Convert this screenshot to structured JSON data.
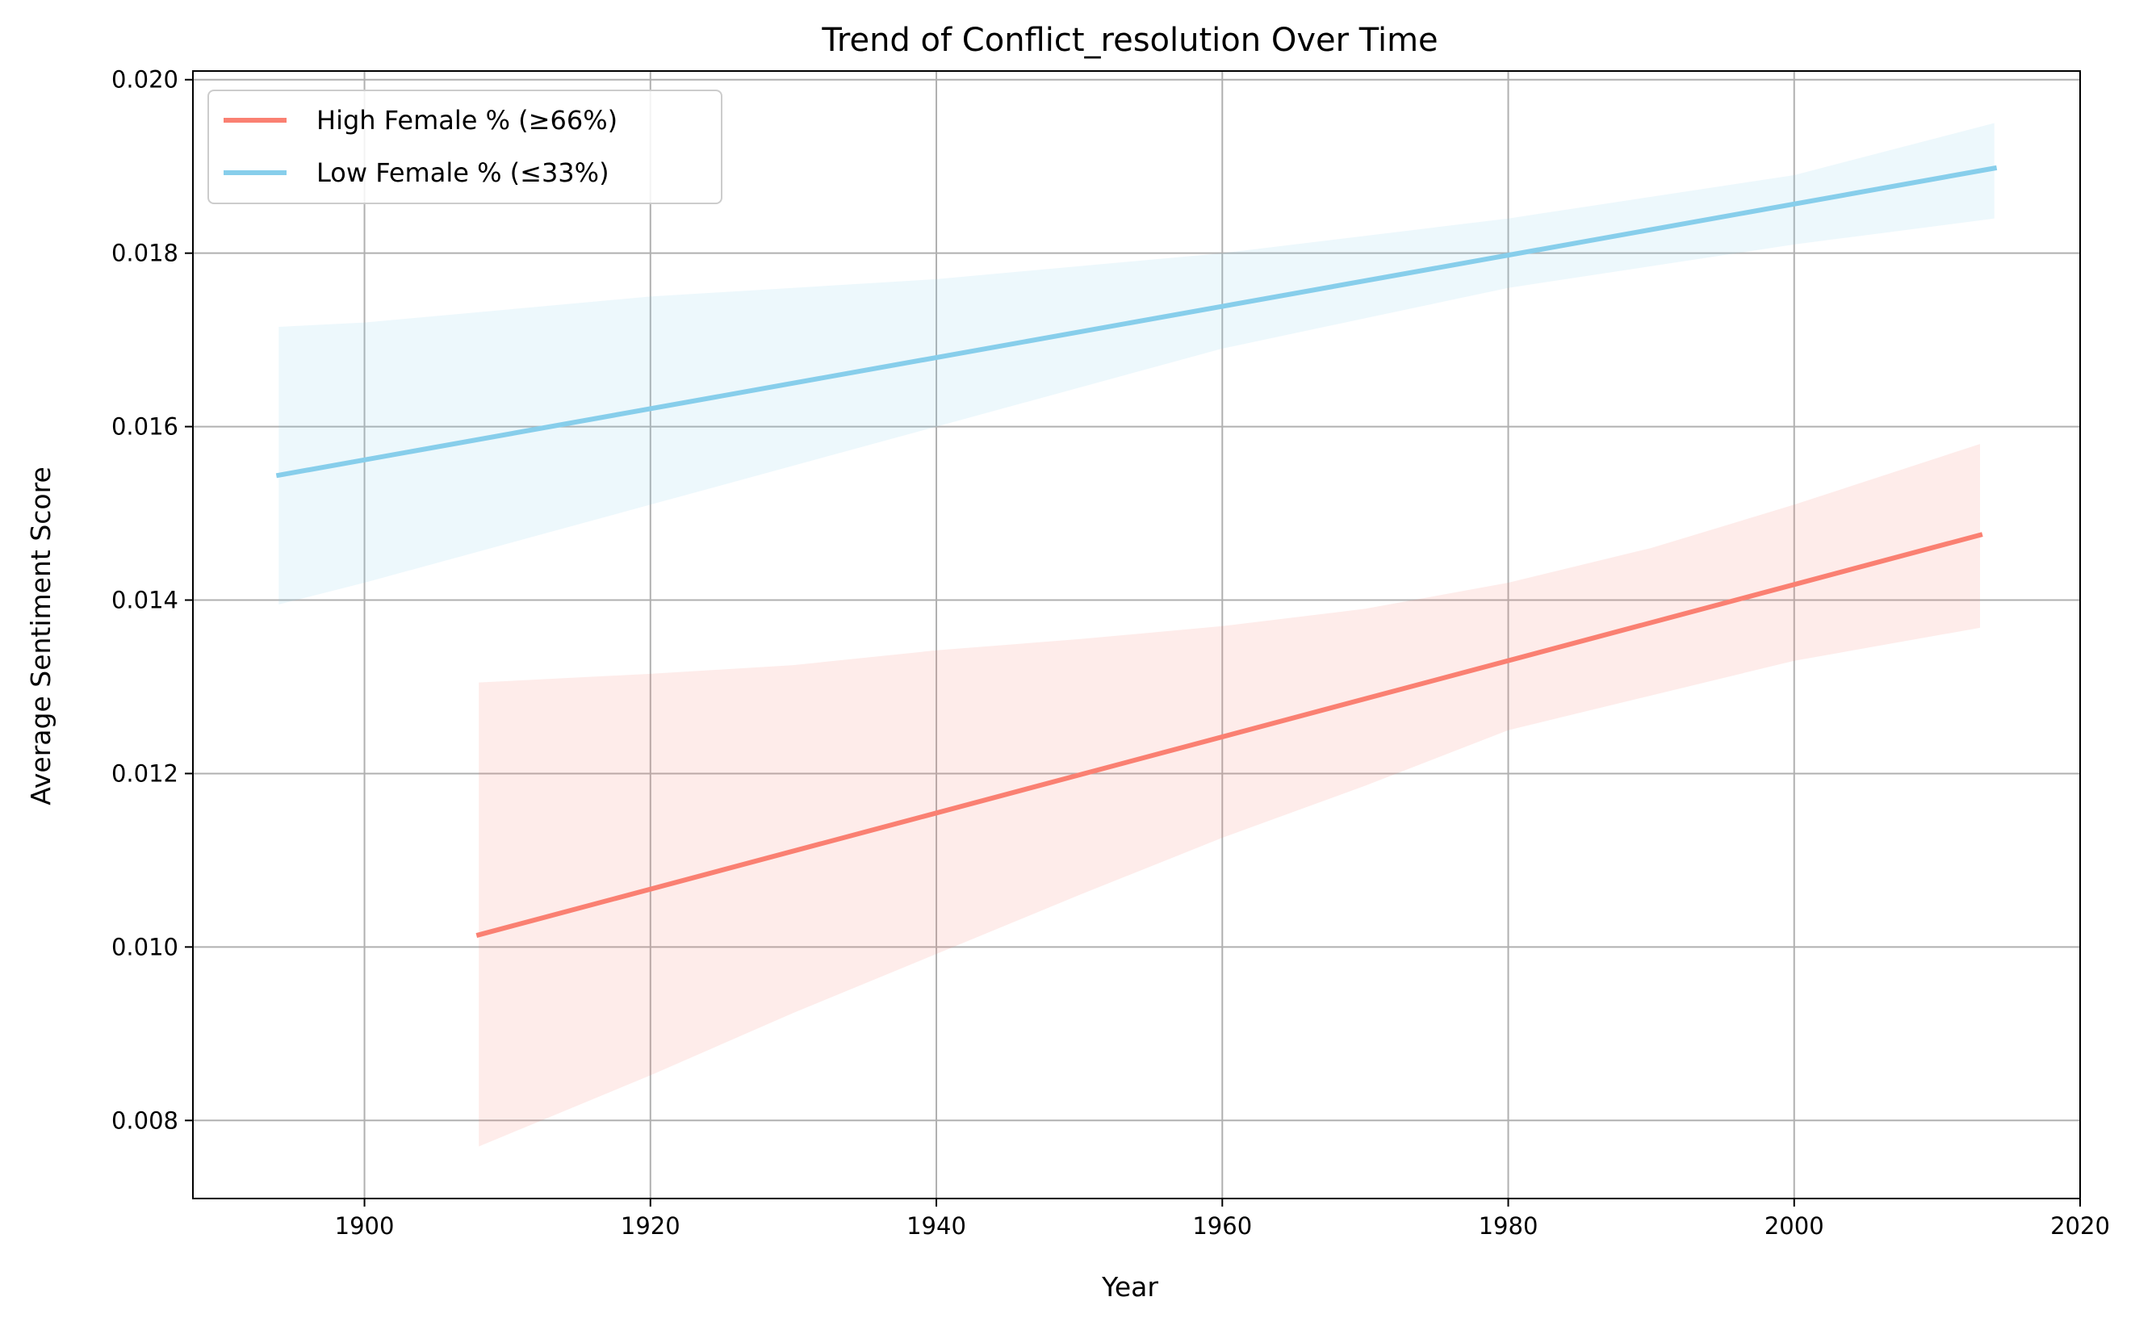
{
  "chart_data": {
    "type": "line",
    "title": "Trend of Conflict_resolution Over Time",
    "xlabel": "Year",
    "ylabel": "Average Sentiment Score",
    "xlim": [
      1888,
      2020
    ],
    "ylim": [
      0.0071,
      0.0201
    ],
    "xticks": [
      1900,
      1920,
      1940,
      1960,
      1980,
      2000,
      2020
    ],
    "xtick_labels": [
      "1900",
      "1920",
      "1940",
      "1960",
      "1980",
      "2000",
      "2020"
    ],
    "yticks": [
      0.008,
      0.01,
      0.012,
      0.014,
      0.016,
      0.018,
      0.02
    ],
    "ytick_labels": [
      "0.008",
      "0.010",
      "0.012",
      "0.014",
      "0.016",
      "0.018",
      "0.020"
    ],
    "grid": true,
    "legend_position": "top-left",
    "series": [
      {
        "name": "High Female % (≥66%)",
        "color": "#fa8072",
        "x": [
          1908,
          2013
        ],
        "y": [
          0.01014,
          0.01475
        ],
        "band_x": [
          1908,
          1920,
          1930,
          1940,
          1950,
          1960,
          1970,
          1980,
          1990,
          2000,
          2013
        ],
        "band_lower": [
          0.0077,
          0.00852,
          0.00924,
          0.00992,
          0.0106,
          0.01126,
          0.01186,
          0.0125,
          0.0129,
          0.0133,
          0.01368
        ],
        "band_upper": [
          0.01305,
          0.01315,
          0.01325,
          0.01342,
          0.01355,
          0.0137,
          0.0139,
          0.0142,
          0.0146,
          0.0151,
          0.0158
        ]
      },
      {
        "name": "Low Female % (≤33%)",
        "color": "#87ceeb",
        "x": [
          1894,
          2014
        ],
        "y": [
          0.01544,
          0.01898
        ],
        "band_x": [
          1894,
          1900,
          1920,
          1940,
          1960,
          1980,
          2000,
          2014
        ],
        "band_lower": [
          0.01395,
          0.0142,
          0.0151,
          0.016,
          0.0169,
          0.0176,
          0.0181,
          0.0184
        ],
        "band_upper": [
          0.01715,
          0.0172,
          0.0175,
          0.0177,
          0.018,
          0.0184,
          0.0189,
          0.0195
        ]
      }
    ]
  }
}
